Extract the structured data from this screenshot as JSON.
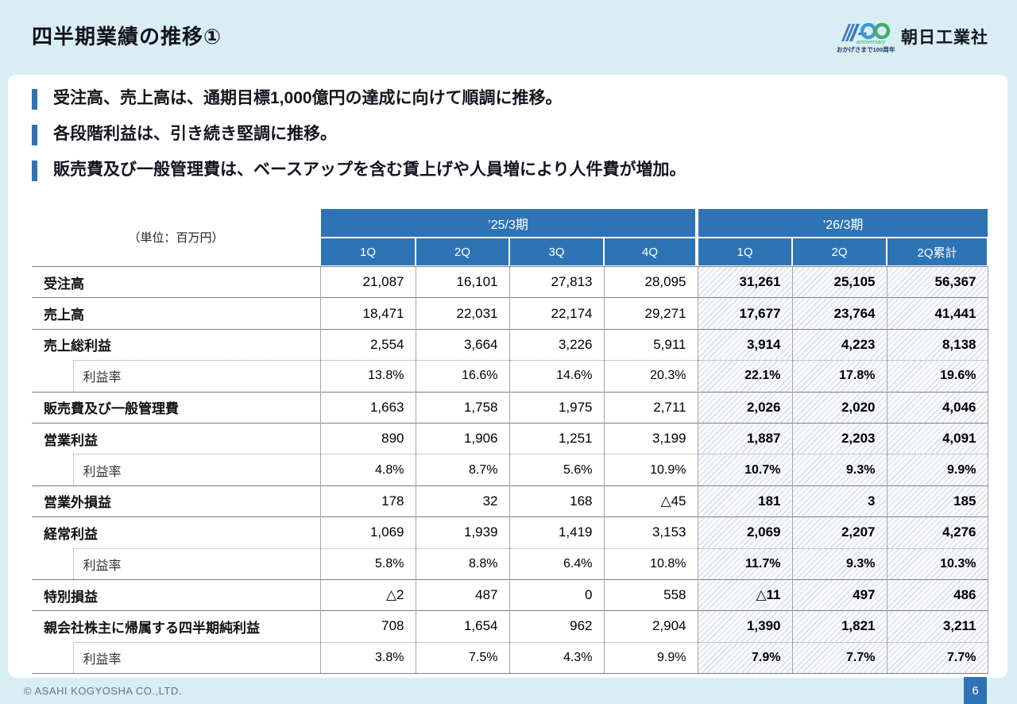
{
  "page": {
    "title": "四半期業績の推移①",
    "logo": {
      "mark": "A100-anniversary-logo",
      "anniversary_text": "anniversary",
      "anniversary_sub": "おかげさまで100周年",
      "company_name": "朝日工業社"
    },
    "footer": {
      "copyright": "© ASAHI KOGYOSHA CO.,LTD.",
      "page_number": "6"
    }
  },
  "bullets": [
    "受注高、売上高は、通期目標1,000億円の達成に向けて順調に推移。",
    "各段階利益は、引き続き堅調に推移。",
    "販売費及び一般管理費は、ベースアップを含む賃上げや人員増により人件費が増加。"
  ],
  "table": {
    "unit_label": "（単位：百万円）",
    "col_groups": [
      {
        "label": "’25/3期",
        "span": 4
      },
      {
        "label": "’26/3期",
        "span": 3
      }
    ],
    "columns": [
      "1Q",
      "2Q",
      "3Q",
      "4Q",
      "1Q",
      "2Q",
      "2Q累計"
    ],
    "rows": [
      {
        "label": "受注高",
        "sub": false,
        "values": [
          "21,087",
          "16,101",
          "27,813",
          "28,095",
          "31,261",
          "25,105",
          "56,367"
        ]
      },
      {
        "label": "売上高",
        "sub": false,
        "values": [
          "18,471",
          "22,031",
          "22,174",
          "29,271",
          "17,677",
          "23,764",
          "41,441"
        ]
      },
      {
        "label": "売上総利益",
        "sub": false,
        "values": [
          "2,554",
          "3,664",
          "3,226",
          "5,911",
          "3,914",
          "4,223",
          "8,138"
        ]
      },
      {
        "label": "利益率",
        "sub": true,
        "values": [
          "13.8%",
          "16.6%",
          "14.6%",
          "20.3%",
          "22.1%",
          "17.8%",
          "19.6%"
        ]
      },
      {
        "label": "販売費及び一般管理費",
        "sub": false,
        "values": [
          "1,663",
          "1,758",
          "1,975",
          "2,711",
          "2,026",
          "2,020",
          "4,046"
        ]
      },
      {
        "label": "営業利益",
        "sub": false,
        "values": [
          "890",
          "1,906",
          "1,251",
          "3,199",
          "1,887",
          "2,203",
          "4,091"
        ]
      },
      {
        "label": "利益率",
        "sub": true,
        "values": [
          "4.8%",
          "8.7%",
          "5.6%",
          "10.9%",
          "10.7%",
          "9.3%",
          "9.9%"
        ]
      },
      {
        "label": "営業外損益",
        "sub": false,
        "values": [
          "178",
          "32",
          "168",
          "△45",
          "181",
          "3",
          "185"
        ]
      },
      {
        "label": "経常利益",
        "sub": false,
        "values": [
          "1,069",
          "1,939",
          "1,419",
          "3,153",
          "2,069",
          "2,207",
          "4,276"
        ]
      },
      {
        "label": "利益率",
        "sub": true,
        "values": [
          "5.8%",
          "8.8%",
          "6.4%",
          "10.8%",
          "11.7%",
          "9.3%",
          "10.3%"
        ]
      },
      {
        "label": "特別損益",
        "sub": false,
        "values": [
          "△2",
          "487",
          "0",
          "558",
          "△11",
          "497",
          "486"
        ]
      },
      {
        "label": "親会社株主に帰属する四半期純利益",
        "sub": false,
        "values": [
          "708",
          "1,654",
          "962",
          "2,904",
          "1,390",
          "1,821",
          "3,211"
        ]
      },
      {
        "label": "利益率",
        "sub": true,
        "values": [
          "3.8%",
          "7.5%",
          "4.3%",
          "9.9%",
          "7.9%",
          "7.7%",
          "7.7%"
        ]
      }
    ]
  },
  "colors": {
    "background": "#d9eef4",
    "panel": "#ffffff",
    "accent_blue": "#2e74b5",
    "logo_green": "#3fae6a",
    "logo_blue": "#3a7bbf"
  }
}
